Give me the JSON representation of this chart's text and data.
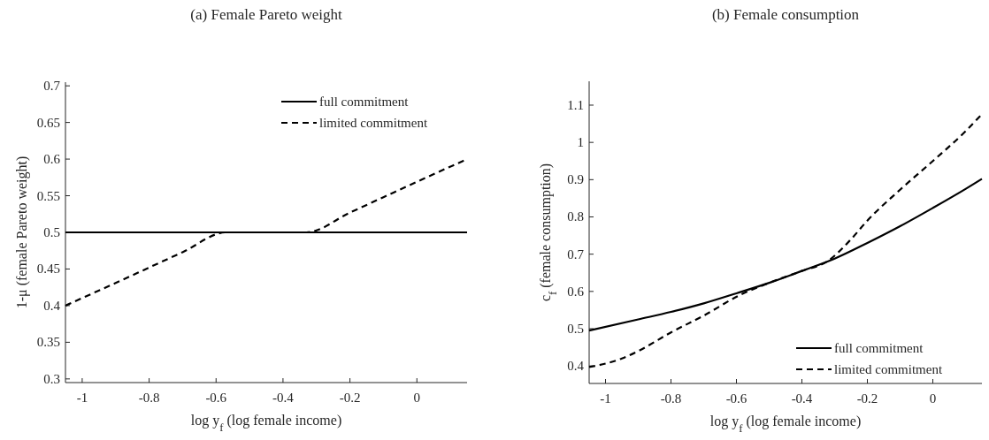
{
  "chart_data": [
    {
      "type": "line",
      "title": "(a) Female Pareto weight",
      "xlabel": "log y$_{f}$ (log female income)",
      "ylabel": "1-μ (female Pareto weight)",
      "xlim": [
        -1.05,
        0.15
      ],
      "xticks": [
        -1,
        -0.8,
        -0.6,
        -0.4,
        -0.2,
        0
      ],
      "ylim": [
        0.295,
        0.705
      ],
      "yticks": [
        0.3,
        0.35,
        0.4,
        0.45,
        0.5,
        0.55,
        0.6,
        0.65,
        0.7
      ],
      "grid": false,
      "legend": "top right",
      "series": [
        {
          "name": "full commitment",
          "color": "#000000",
          "line_style": "solid",
          "x": [
            -1.05,
            0.15
          ],
          "values": [
            0.5,
            0.5
          ]
        },
        {
          "name": "limited commitment",
          "color": "#000000",
          "line_style": "dashed",
          "x": [
            -1.05,
            -0.9,
            -0.8,
            -0.7,
            -0.57,
            -0.45,
            -0.33,
            -0.2,
            -0.1,
            0,
            0.15
          ],
          "values": [
            0.4,
            0.431,
            0.452,
            0.473,
            0.5,
            0.5,
            0.5,
            0.527,
            0.548,
            0.569,
            0.6
          ]
        }
      ]
    },
    {
      "type": "line",
      "title": "(b) Female consumption",
      "xlabel": "log y$_{f}$ (log female income)",
      "ylabel": "c$_{f}$ (female consumption)",
      "xlim": [
        -1.05,
        0.15
      ],
      "xticks": [
        -1,
        -0.8,
        -0.6,
        -0.4,
        -0.2,
        0
      ],
      "ylim": [
        0.353,
        1.164
      ],
      "yticks": [
        0.4,
        0.5,
        0.6,
        0.7,
        0.8,
        0.9,
        1,
        1.1
      ],
      "grid": false,
      "legend": "bottom right",
      "series": [
        {
          "name": "full commitment",
          "color": "#000000",
          "line_style": "solid",
          "x": [
            -1.05,
            -0.9,
            -0.8,
            -0.7,
            -0.6,
            -0.5,
            -0.4,
            -0.3,
            -0.2,
            -0.1,
            0,
            0.1,
            0.15
          ],
          "values": [
            0.495,
            0.525,
            0.545,
            0.568,
            0.595,
            0.623,
            0.655,
            0.688,
            0.73,
            0.775,
            0.824,
            0.875,
            0.902
          ]
        },
        {
          "name": "limited commitment",
          "color": "#000000",
          "line_style": "dashed",
          "x": [
            -1.05,
            -0.95,
            -0.9,
            -0.8,
            -0.7,
            -0.59,
            -0.5,
            -0.4,
            -0.32,
            -0.25,
            -0.2,
            -0.1,
            0,
            0.1,
            0.15
          ],
          "values": [
            0.397,
            0.42,
            0.44,
            0.49,
            0.535,
            0.59,
            0.623,
            0.655,
            0.682,
            0.74,
            0.79,
            0.873,
            0.95,
            1.03,
            1.076
          ]
        }
      ]
    }
  ]
}
